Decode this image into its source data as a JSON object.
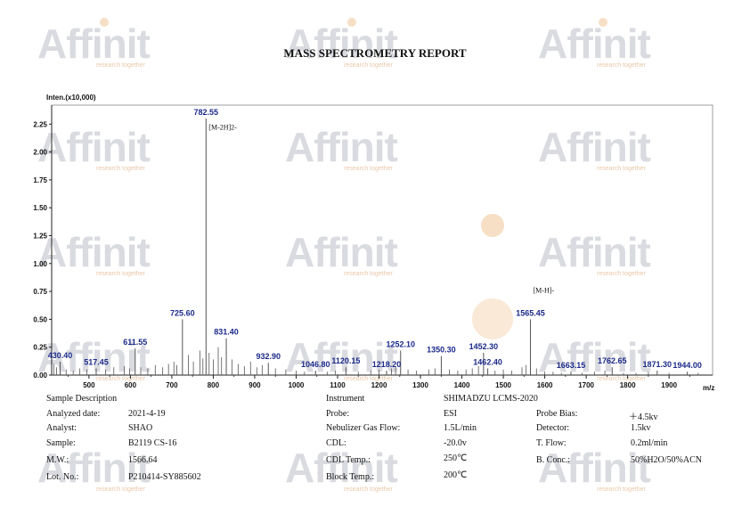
{
  "watermark_text": "Affinit",
  "watermark_tagline": "research together",
  "report_title": "MASS SPECTROMETRY REPORT",
  "chart_data": {
    "type": "line",
    "title": "",
    "ylabel": "Inten.(x10,000)",
    "xlabel": "m/z",
    "xlim": [
      410,
      2005
    ],
    "ylim": [
      0,
      2.42
    ],
    "x_ticks": [
      500,
      600,
      700,
      800,
      900,
      1000,
      1100,
      1200,
      1300,
      1400,
      1500,
      1600,
      1700,
      1800,
      1900
    ],
    "y_ticks": [
      "0.00",
      "0.25",
      "0.50",
      "0.75",
      "1.00",
      "1.25",
      "1.50",
      "1.75",
      "2.00",
      "2.25"
    ],
    "grid": false,
    "color": "#555555",
    "label_color": "#1b2a8a",
    "peaks": [
      {
        "x": 430.4,
        "y": 0.12,
        "label": "430.40"
      },
      {
        "x": 517.45,
        "y": 0.06,
        "label": "517.45"
      },
      {
        "x": 611.55,
        "y": 0.24,
        "label": "611.55"
      },
      {
        "x": 725.6,
        "y": 0.5,
        "label": "725.60"
      },
      {
        "x": 782.55,
        "y": 2.3,
        "label": "782.55"
      },
      {
        "x": 831.4,
        "y": 0.33,
        "label": "831.40"
      },
      {
        "x": 932.9,
        "y": 0.11,
        "label": "932.90"
      },
      {
        "x": 1046.8,
        "y": 0.04,
        "label": "1046.80"
      },
      {
        "x": 1120.15,
        "y": 0.07,
        "label": "1120.15"
      },
      {
        "x": 1218.2,
        "y": 0.04,
        "label": "1218.20"
      },
      {
        "x": 1252.1,
        "y": 0.22,
        "label": "1252.10"
      },
      {
        "x": 1350.3,
        "y": 0.17,
        "label": "1350.30"
      },
      {
        "x": 1452.3,
        "y": 0.2,
        "label": "1452.30"
      },
      {
        "x": 1462.4,
        "y": 0.06,
        "label": "1462.40"
      },
      {
        "x": 1565.45,
        "y": 0.5,
        "label": "1565.45"
      },
      {
        "x": 1663.15,
        "y": 0.03,
        "label": "1663.15"
      },
      {
        "x": 1762.65,
        "y": 0.07,
        "label": "1762.65"
      },
      {
        "x": 1871.3,
        "y": 0.04,
        "label": "1871.30"
      },
      {
        "x": 1944.0,
        "y": 0.03,
        "label": "1944.00"
      }
    ],
    "noise_peaks": [
      {
        "x": 415,
        "y": 0.1
      },
      {
        "x": 422,
        "y": 0.07
      },
      {
        "x": 445,
        "y": 0.05
      },
      {
        "x": 462,
        "y": 0.04
      },
      {
        "x": 478,
        "y": 0.06
      },
      {
        "x": 495,
        "y": 0.05
      },
      {
        "x": 540,
        "y": 0.05
      },
      {
        "x": 560,
        "y": 0.07
      },
      {
        "x": 585,
        "y": 0.08
      },
      {
        "x": 598,
        "y": 0.06
      },
      {
        "x": 625,
        "y": 0.07
      },
      {
        "x": 642,
        "y": 0.06
      },
      {
        "x": 660,
        "y": 0.09
      },
      {
        "x": 678,
        "y": 0.07
      },
      {
        "x": 692,
        "y": 0.1
      },
      {
        "x": 705,
        "y": 0.12
      },
      {
        "x": 712,
        "y": 0.09
      },
      {
        "x": 740,
        "y": 0.18
      },
      {
        "x": 752,
        "y": 0.12
      },
      {
        "x": 768,
        "y": 0.22
      },
      {
        "x": 775,
        "y": 0.15
      },
      {
        "x": 790,
        "y": 0.2
      },
      {
        "x": 800,
        "y": 0.14
      },
      {
        "x": 812,
        "y": 0.25
      },
      {
        "x": 820,
        "y": 0.16
      },
      {
        "x": 845,
        "y": 0.14
      },
      {
        "x": 860,
        "y": 0.1
      },
      {
        "x": 875,
        "y": 0.08
      },
      {
        "x": 890,
        "y": 0.12
      },
      {
        "x": 905,
        "y": 0.07
      },
      {
        "x": 918,
        "y": 0.09
      },
      {
        "x": 950,
        "y": 0.06
      },
      {
        "x": 975,
        "y": 0.05
      },
      {
        "x": 1000,
        "y": 0.04
      },
      {
        "x": 1020,
        "y": 0.03
      },
      {
        "x": 1075,
        "y": 0.03
      },
      {
        "x": 1095,
        "y": 0.04
      },
      {
        "x": 1150,
        "y": 0.03
      },
      {
        "x": 1180,
        "y": 0.04
      },
      {
        "x": 1200,
        "y": 0.05
      },
      {
        "x": 1230,
        "y": 0.06
      },
      {
        "x": 1240,
        "y": 0.08
      },
      {
        "x": 1270,
        "y": 0.05
      },
      {
        "x": 1290,
        "y": 0.04
      },
      {
        "x": 1320,
        "y": 0.05
      },
      {
        "x": 1335,
        "y": 0.06
      },
      {
        "x": 1370,
        "y": 0.05
      },
      {
        "x": 1390,
        "y": 0.04
      },
      {
        "x": 1410,
        "y": 0.05
      },
      {
        "x": 1425,
        "y": 0.06
      },
      {
        "x": 1440,
        "y": 0.08
      },
      {
        "x": 1480,
        "y": 0.04
      },
      {
        "x": 1500,
        "y": 0.05
      },
      {
        "x": 1520,
        "y": 0.04
      },
      {
        "x": 1545,
        "y": 0.07
      },
      {
        "x": 1555,
        "y": 0.09
      },
      {
        "x": 1580,
        "y": 0.06
      },
      {
        "x": 1600,
        "y": 0.03
      },
      {
        "x": 1620,
        "y": 0.03
      },
      {
        "x": 1640,
        "y": 0.02
      },
      {
        "x": 1690,
        "y": 0.02
      },
      {
        "x": 1720,
        "y": 0.03
      },
      {
        "x": 1745,
        "y": 0.04
      },
      {
        "x": 1790,
        "y": 0.02
      },
      {
        "x": 1820,
        "y": 0.02
      },
      {
        "x": 1850,
        "y": 0.03
      },
      {
        "x": 1900,
        "y": 0.02
      },
      {
        "x": 1970,
        "y": 0.02
      }
    ],
    "annotations": [
      {
        "x": 782.55,
        "y": 2.2,
        "text": "[M-2H]2-"
      },
      {
        "x": 1565.45,
        "y": 0.74,
        "text": "[M-H]-"
      }
    ]
  },
  "sample": {
    "header": "Sample Description",
    "rows": [
      {
        "label": "Analyzed date:",
        "value": "2021-4-19"
      },
      {
        "label": "Analyst:",
        "value": "SHAO"
      },
      {
        "label": "Sample:",
        "value": "B2119 CS-16"
      },
      {
        "label": "M.W.:",
        "value": "1566.64"
      },
      {
        "label": "Lot. No.:",
        "value": "P210414-SY885602"
      }
    ]
  },
  "instrument": {
    "header_label": "Instrument",
    "header_value": "SHIMADZU LCMS-2020",
    "rows": [
      {
        "label": "Probe:",
        "value": "ESI",
        "label2": "Probe Bias:",
        "value2": "＋4.5kv"
      },
      {
        "label": "Nebulizer Gas Flow:",
        "value": "1.5L/min",
        "label2": "Detector:",
        "value2": "1.5kv"
      },
      {
        "label": "CDL:",
        "value": "-20.0v",
        "label2": "T. Flow:",
        "value2": "0.2ml/min"
      },
      {
        "label": "CDL Temp.:",
        "value": "250℃",
        "label2": "B. Conc.:",
        "value2": "50%H2O/50%ACN"
      },
      {
        "label": "Block Temp.:",
        "value": "200℃",
        "label2": "",
        "value2": ""
      }
    ]
  }
}
